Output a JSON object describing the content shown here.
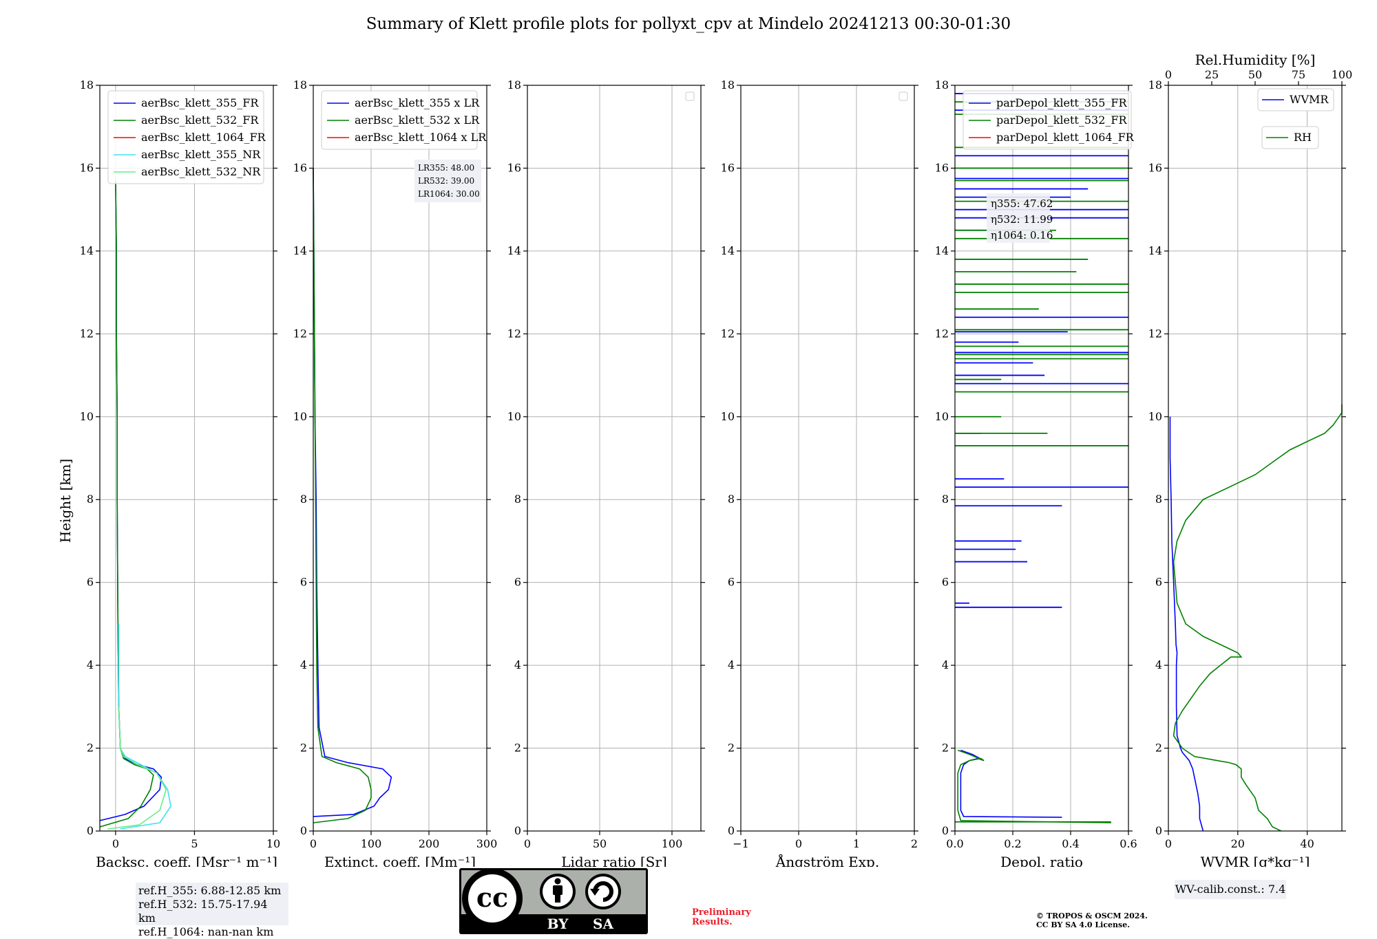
{
  "title": "Summary of Klett profile plots for pollyxt_cpv at Mindelo 20241213 00:30-01:30",
  "ylabel": "Height [km]",
  "y_ticks": [
    "0",
    "2",
    "4",
    "6",
    "8",
    "10",
    "12",
    "14",
    "16",
    "18"
  ],
  "panels": [
    {
      "id": "bsc",
      "xlabel": "Backsc. coeff. [Msr⁻¹ m⁻¹]",
      "xlim": [
        -1,
        10
      ],
      "xticks": [
        "0",
        "5",
        "10"
      ],
      "legend": [
        "aerBsc_klett_355_FR",
        "aerBsc_klett_532_FR",
        "aerBsc_klett_1064_FR",
        "aerBsc_klett_355_NR",
        "aerBsc_klett_532_NR"
      ]
    },
    {
      "id": "ext",
      "xlabel": "Extinct. coeff. [Mm⁻¹]",
      "xlim": [
        0,
        300
      ],
      "xticks": [
        "0",
        "100",
        "200",
        "300"
      ],
      "legend": [
        "aerBsc_klett_355 x LR",
        "aerBsc_klett_532 x LR",
        "aerBsc_klett_1064 x LR"
      ],
      "lr_text": [
        "LR355: 48.00",
        "LR532: 39.00",
        "LR1064: 30.00"
      ]
    },
    {
      "id": "lr",
      "xlabel": "Lidar ratio [Sr]",
      "xlim": [
        0,
        120
      ],
      "xticks": [
        "0",
        "50",
        "100"
      ],
      "legend": []
    },
    {
      "id": "ang",
      "xlabel": "Ångström Exp.",
      "xlim": [
        -1,
        2
      ],
      "xticks": [
        "−1",
        "0",
        "1",
        "2"
      ],
      "legend": []
    },
    {
      "id": "dep",
      "xlabel": "Depol. ratio",
      "xlim": [
        0,
        0.6
      ],
      "xticks": [
        "0.0",
        "0.2",
        "0.4",
        "0.6"
      ],
      "legend": [
        "parDepol_klett_355_FR",
        "parDepol_klett_532_FR",
        "parDepol_klett_1064_FR"
      ],
      "eta_text": [
        "η355: 47.62",
        "η532: 11.99",
        "η1064: 0.16"
      ]
    },
    {
      "id": "wv",
      "xlabel": "WVMR [g*kg⁻¹]",
      "xlim": [
        0,
        50
      ],
      "xticks": [
        "0",
        "20",
        "40"
      ],
      "top_label": "Rel.Humidity [%]",
      "top_ticks": [
        "0",
        "25",
        "50",
        "75",
        "100"
      ],
      "legend": [
        "WVMR",
        "RH"
      ]
    }
  ],
  "refbox": [
    "ref.H_355: 6.88-12.85 km",
    "ref.H_532: 15.75-17.94 km",
    "ref.H_1064: nan-nan km"
  ],
  "wv_calib": "WV-calib.const.: 7.4",
  "prelim": [
    "Preliminary",
    "Results."
  ],
  "copyright": [
    "© TROPOS & OSCM 2024.",
    "CC BY SA 4.0 License."
  ],
  "cc_badge": {
    "by": "BY",
    "sa": "SA",
    "cc": "cc"
  },
  "colors": {
    "c355": "#0000ff",
    "c532": "#008000",
    "c1064": "#ff0000",
    "c355nr": "#40e0f0",
    "c532nr": "#66ee88",
    "grid": "#b0b0b0"
  },
  "chart_data": [
    {
      "type": "line",
      "panel": "bsc",
      "ylim": [
        0,
        18
      ],
      "xlim": [
        -1,
        10
      ],
      "series": [
        {
          "name": "aerBsc_klett_355_FR",
          "x": [
            -1.0,
            0.6,
            1.8,
            2.8,
            2.9,
            2.4,
            1.4,
            0.6,
            0.3,
            0.2,
            0.15,
            0.1,
            0.1,
            0.05,
            0.05,
            0.0
          ],
          "y": [
            0.25,
            0.4,
            0.6,
            1.0,
            1.3,
            1.5,
            1.6,
            1.75,
            2.0,
            3.0,
            5.0,
            8.0,
            10.0,
            12.0,
            14.0,
            15.7
          ]
        },
        {
          "name": "aerBsc_klett_532_FR",
          "x": [
            -1.0,
            0.8,
            1.6,
            2.2,
            2.4,
            2.0,
            1.2,
            0.5,
            0.3,
            0.2,
            0.15,
            0.1,
            0.1,
            0.05,
            0.05,
            0.0
          ],
          "y": [
            0.1,
            0.3,
            0.6,
            1.0,
            1.35,
            1.5,
            1.6,
            1.75,
            2.0,
            3.0,
            5.0,
            8.0,
            10.0,
            12.0,
            14.0,
            15.7
          ]
        },
        {
          "name": "aerBsc_klett_355_NR",
          "x": [
            0.3,
            2.8,
            3.5,
            3.3,
            2.6,
            1.6,
            0.6,
            0.3,
            0.2,
            0.2,
            0.2
          ],
          "y": [
            0.05,
            0.2,
            0.6,
            1.0,
            1.4,
            1.6,
            1.8,
            2.0,
            3.0,
            4.0,
            5.0
          ]
        },
        {
          "name": "aerBsc_klett_532_NR",
          "x": [
            -0.5,
            1.5,
            2.8,
            3.2,
            2.6,
            1.4,
            0.5,
            0.3,
            0.2
          ],
          "y": [
            0.05,
            0.15,
            0.5,
            1.0,
            1.4,
            1.6,
            1.8,
            2.0,
            3.0
          ]
        }
      ]
    },
    {
      "type": "line",
      "panel": "ext",
      "ylim": [
        0,
        18
      ],
      "xlim": [
        0,
        300
      ],
      "series": [
        {
          "name": "aerBsc_klett_355 x LR",
          "x": [
            0,
            70,
            105,
            115,
            130,
            135,
            120,
            60,
            20,
            10,
            8,
            6,
            5,
            3,
            2,
            0
          ],
          "y": [
            0.35,
            0.4,
            0.6,
            0.8,
            1.0,
            1.3,
            1.5,
            1.65,
            1.8,
            2.5,
            4.0,
            6.0,
            8.0,
            10.0,
            12.0,
            16.0
          ]
        },
        {
          "name": "aerBsc_klett_532 x LR",
          "x": [
            0,
            60,
            90,
            100,
            100,
            95,
            80,
            40,
            15,
            8,
            6,
            5,
            4,
            3,
            2,
            0
          ],
          "y": [
            0.2,
            0.3,
            0.5,
            0.8,
            1.0,
            1.3,
            1.5,
            1.65,
            1.8,
            2.5,
            4.0,
            6.0,
            8.0,
            10.0,
            12.0,
            16.0
          ]
        }
      ]
    },
    {
      "type": "line",
      "panel": "lr",
      "ylim": [
        0,
        18
      ],
      "xlim": [
        0,
        120
      ],
      "series": []
    },
    {
      "type": "line",
      "panel": "ang",
      "ylim": [
        -1,
        2
      ],
      "series": []
    },
    {
      "type": "line",
      "panel": "dep",
      "ylim": [
        0,
        18
      ],
      "xlim": [
        0,
        0.6
      ],
      "series": [
        {
          "name": "parDepol_klett_355_FR",
          "x": [
            0.37,
            0.03,
            0.02,
            0.02,
            0.02,
            0.03,
            0.05,
            0.08,
            0.1,
            0.06,
            0.02
          ],
          "y": [
            0.33,
            0.35,
            0.5,
            1.0,
            1.4,
            1.6,
            1.7,
            1.75,
            1.7,
            1.85,
            1.95
          ]
        },
        {
          "name": "parDepol_klett_532_FR",
          "x": [
            0.54,
            0.02,
            0.01,
            0.01,
            0.01,
            0.02,
            0.05,
            0.09,
            0.1,
            0.05,
            0.01
          ],
          "y": [
            0.2,
            0.25,
            0.5,
            1.0,
            1.4,
            1.6,
            1.7,
            1.75,
            1.7,
            1.85,
            1.95
          ]
        }
      ],
      "spikes_355": [
        [
          5.4,
          0.37
        ],
        [
          5.5,
          0.05
        ],
        [
          6.5,
          0.25
        ],
        [
          6.8,
          0.21
        ],
        [
          7.0,
          0.23
        ],
        [
          7.85,
          0.37
        ],
        [
          8.3,
          0.6
        ],
        [
          8.5,
          0.17
        ],
        [
          9.6,
          0.09
        ],
        [
          10.8,
          0.6
        ],
        [
          11.0,
          0.31
        ],
        [
          11.3,
          0.27
        ],
        [
          11.55,
          0.6
        ],
        [
          11.8,
          0.22
        ],
        [
          12.05,
          0.39
        ],
        [
          12.4,
          0.6
        ],
        [
          14.5,
          0.33
        ],
        [
          14.8,
          0.6
        ],
        [
          15.0,
          0.6
        ],
        [
          15.3,
          0.4
        ],
        [
          15.5,
          0.46
        ],
        [
          15.75,
          0.6
        ],
        [
          16.3,
          0.6
        ],
        [
          17.4,
          0.6
        ],
        [
          17.8,
          0.6
        ]
      ],
      "spikes_532": [
        [
          0.22,
          0.54
        ],
        [
          9.3,
          0.6
        ],
        [
          9.6,
          0.32
        ],
        [
          10.0,
          0.16
        ],
        [
          10.6,
          0.6
        ],
        [
          10.9,
          0.16
        ],
        [
          11.4,
          0.6
        ],
        [
          11.5,
          0.6
        ],
        [
          11.7,
          0.6
        ],
        [
          12.1,
          0.6
        ],
        [
          12.6,
          0.29
        ],
        [
          13.0,
          0.6
        ],
        [
          13.2,
          0.6
        ],
        [
          13.5,
          0.42
        ],
        [
          13.8,
          0.46
        ],
        [
          14.3,
          0.6
        ],
        [
          14.5,
          0.35
        ],
        [
          15.2,
          0.6
        ],
        [
          15.7,
          0.6
        ],
        [
          16.0,
          0.6
        ],
        [
          16.5,
          0.6
        ],
        [
          17.3,
          0.6
        ],
        [
          17.6,
          0.6
        ]
      ]
    },
    {
      "type": "line",
      "panel": "wv",
      "ylim": [
        0,
        18
      ],
      "xlim": [
        0,
        50
      ],
      "x2label": "Rel.Humidity [%]",
      "x2lim": [
        0,
        100
      ],
      "series": [
        {
          "name": "WVMR",
          "x": [
            10,
            9,
            9,
            8.5,
            8,
            7.5,
            7,
            6,
            5,
            4,
            3.5,
            2.5,
            2.3,
            2.3,
            2.5,
            2.2,
            2.0,
            1.5,
            1.0,
            0.8,
            0.5,
            0.5
          ],
          "y": [
            0.0,
            0.3,
            0.6,
            0.9,
            1.1,
            1.3,
            1.5,
            1.7,
            1.8,
            1.9,
            2.0,
            2.3,
            3.0,
            4.0,
            4.3,
            4.5,
            5.0,
            6.0,
            7.0,
            8.0,
            9.0,
            10.0
          ]
        },
        {
          "name": "RH",
          "x": [
            65,
            60,
            57,
            52,
            50,
            45,
            42,
            42,
            39,
            35,
            28,
            15,
            8,
            3,
            4,
            8,
            13,
            18,
            24,
            30,
            36,
            42,
            40,
            35,
            30,
            20,
            10,
            5,
            4,
            3,
            5,
            10,
            20,
            35,
            50,
            60,
            70,
            80,
            90,
            95,
            100,
            100
          ],
          "y": [
            0.0,
            0.1,
            0.3,
            0.5,
            0.8,
            1.1,
            1.3,
            1.5,
            1.6,
            1.65,
            1.7,
            1.8,
            2.0,
            2.3,
            2.6,
            2.9,
            3.2,
            3.5,
            3.8,
            4.0,
            4.2,
            4.2,
            4.3,
            4.4,
            4.5,
            4.7,
            5.0,
            5.5,
            6.0,
            6.5,
            7.0,
            7.5,
            8.0,
            8.3,
            8.6,
            8.9,
            9.2,
            9.4,
            9.6,
            9.8,
            10.1,
            10.3
          ]
        }
      ]
    }
  ]
}
